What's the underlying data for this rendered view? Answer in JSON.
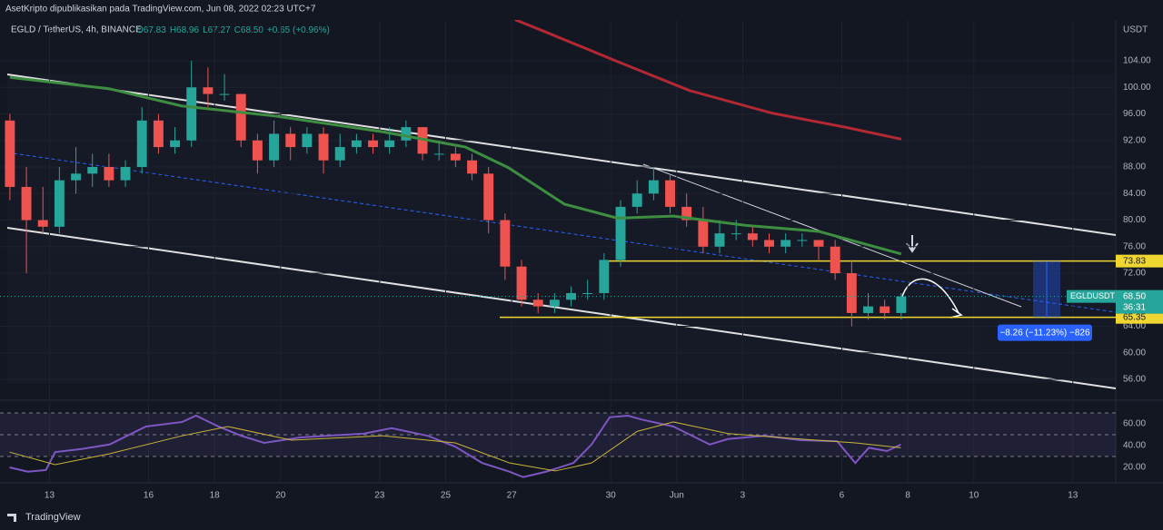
{
  "header": {
    "publisher": "AsetKripto dipublikasikan pada TradingView.com, Jun 08, 2022 02:23 UTC+7",
    "symbol": "EGLD / TetherUS, 4h, BINANCE",
    "ohlc": [
      "O67.83",
      "H68.96",
      "L67.27",
      "C68.50",
      "+0.65 (+0.96%)"
    ],
    "footer": "TradingView"
  },
  "chart_data": [
    {
      "type": "candlestick",
      "axis_title": "USDT",
      "up_color": "#26a69a",
      "down_color": "#ef5350",
      "x": [
        -1.2,
        -0.7,
        -0.2,
        0.3,
        0.8,
        1.3,
        1.8,
        2.3,
        2.8,
        3.3,
        3.8,
        4.3,
        4.8,
        5.3,
        5.8,
        6.3,
        6.8,
        7.3,
        7.8,
        8.3,
        8.8,
        9.3,
        9.8,
        10.3,
        10.8,
        11.3,
        11.8,
        12.3,
        12.8,
        13.3,
        13.8,
        14.3,
        14.8,
        15.3,
        15.8,
        16.3,
        16.8,
        17.3,
        17.8,
        18.3,
        18.8,
        19.3,
        19.8,
        20.3,
        20.8,
        21.3,
        21.8,
        22.3,
        22.8,
        23.3,
        23.8,
        24.3,
        24.8,
        25.3,
        25.8
      ],
      "open": [
        95,
        85,
        80,
        79,
        86,
        87,
        88,
        86,
        88,
        95,
        91,
        92,
        100,
        99,
        99,
        92,
        89,
        93,
        91,
        93,
        89,
        91,
        92,
        91,
        92,
        94,
        90,
        90,
        89,
        87,
        80,
        73,
        68,
        67,
        68,
        69,
        69,
        74,
        82,
        84,
        86,
        82,
        80,
        76,
        78,
        78,
        77,
        76,
        77,
        77,
        76,
        72,
        66,
        67,
        66
      ],
      "high": [
        96,
        88,
        85,
        88,
        91,
        90,
        90,
        89,
        97,
        96,
        94,
        104,
        103,
        102,
        99,
        93,
        95,
        94,
        94,
        94,
        93,
        93,
        93,
        94,
        95,
        94,
        92,
        91,
        90,
        88,
        81,
        74,
        69,
        69,
        70,
        71,
        75,
        83,
        86,
        88,
        87,
        84,
        82,
        80,
        80,
        79,
        78,
        78,
        78,
        77,
        77,
        74,
        69,
        68,
        69
      ],
      "low": [
        83,
        72,
        78,
        78,
        84,
        85,
        85,
        85,
        87,
        90,
        90,
        91,
        97,
        98,
        91,
        87,
        88,
        89,
        90,
        87,
        88,
        90,
        90,
        90,
        91,
        89,
        89,
        88,
        86,
        78,
        71,
        67,
        66,
        66,
        67,
        68,
        68,
        73,
        81,
        83,
        81,
        79,
        75,
        75,
        77,
        76,
        75,
        75,
        76,
        74,
        71,
        64,
        65,
        65,
        65
      ],
      "close": [
        85,
        80,
        79,
        86,
        87,
        88,
        86,
        88,
        95,
        91,
        92,
        100,
        99,
        99,
        92,
        89,
        93,
        91,
        93,
        89,
        91,
        92,
        91,
        92,
        94,
        90,
        90,
        89,
        87,
        80,
        73,
        68,
        67,
        68,
        69,
        69,
        74,
        82,
        84,
        86,
        82,
        80,
        76,
        78,
        78,
        77,
        76,
        77,
        77,
        76,
        72,
        66,
        67,
        66,
        68.5
      ],
      "series": [
        {
          "color": "#3e8e41",
          "x": [
            -1.2,
            1.8,
            4.0,
            6.8,
            10.1,
            12.6,
            13.9,
            15.6,
            17.2,
            18.9,
            21.1,
            23.3,
            25.8
          ],
          "values": [
            101.5,
            99.8,
            97.2,
            95.7,
            93.3,
            91,
            87.9,
            82.4,
            80.3,
            80.6,
            79.2,
            78.3,
            74.9
          ]
        },
        {
          "color": "#b22833",
          "x": [
            14.1,
            15.0,
            17.2,
            19.4,
            21.9,
            24.1,
            25.8
          ],
          "values": [
            110.2,
            108.4,
            103.9,
            99.5,
            96.1,
            94,
            92.2
          ]
        }
      ],
      "price_levels": [
        {
          "value": 73.83,
          "label": "73.83"
        },
        {
          "value": 65.35,
          "label": "65.35"
        }
      ],
      "last_price": {
        "value": 68.5,
        "label": "68.50",
        "symbol": "EGLDUSDT",
        "countdown": "36:31"
      },
      "measure_label": "−8.26 (−11.23%) −826",
      "xlim": [
        -1.5,
        32.3
      ],
      "ylim": [
        53,
        110.15
      ],
      "xticks": [
        {
          "value": 0,
          "label": "13"
        },
        {
          "value": 3,
          "label": "16"
        },
        {
          "value": 5,
          "label": "18"
        },
        {
          "value": 7,
          "label": "20"
        },
        {
          "value": 10,
          "label": "23"
        },
        {
          "value": 12,
          "label": "25"
        },
        {
          "value": 14,
          "label": "27"
        },
        {
          "value": 17,
          "label": "30"
        },
        {
          "value": 19,
          "label": "Jun"
        },
        {
          "value": 21,
          "label": "3"
        },
        {
          "value": 24,
          "label": "6"
        },
        {
          "value": 26,
          "label": "8"
        },
        {
          "value": 28,
          "label": "10"
        },
        {
          "value": 31,
          "label": "13"
        }
      ],
      "yticks": [
        {
          "value": 104,
          "label": "104.00"
        },
        {
          "value": 100,
          "label": "100.00"
        },
        {
          "value": 96,
          "label": "96.00"
        },
        {
          "value": 92,
          "label": "92.00"
        },
        {
          "value": 88,
          "label": "88.00"
        },
        {
          "value": 84,
          "label": "84.00"
        },
        {
          "value": 80,
          "label": "80.00"
        },
        {
          "value": 76,
          "label": "76.00"
        },
        {
          "value": 72,
          "label": "72.00"
        },
        {
          "value": 64,
          "label": "64.00"
        },
        {
          "value": 60,
          "label": "60.00"
        },
        {
          "value": 56,
          "label": "56.00"
        }
      ]
    },
    {
      "type": "line",
      "ylim": [
        5.8,
        80
      ],
      "levels": [
        70,
        50,
        30
      ],
      "yticks": [
        {
          "value": 60,
          "label": "60.00"
        },
        {
          "value": 40,
          "label": "40.00"
        },
        {
          "value": 20,
          "label": "20.00"
        }
      ],
      "series": [
        {
          "color": "#7e57c2",
          "x": [
            -1.21,
            -0.66,
            -0.11,
            0.17,
            0.99,
            1.82,
            2.92,
            4.02,
            4.44,
            5.12,
            5.81,
            6.5,
            7.6,
            8.43,
            9.53,
            10.36,
            11.46,
            12.29,
            13.11,
            13.94,
            14.35,
            15.04,
            15.87,
            16.42,
            16.97,
            17.52,
            17.93,
            18.9,
            20,
            20.55,
            21.65,
            22.75,
            23.86,
            24.41,
            24.82,
            25.37,
            25.79
          ],
          "values": [
            20,
            16,
            17.5,
            34,
            37,
            41,
            57.5,
            61.7,
            67.5,
            57.5,
            49,
            42.5,
            47.5,
            49,
            51,
            56,
            49,
            39,
            24,
            16,
            11,
            16,
            24,
            41,
            66,
            67.5,
            64,
            57.5,
            41,
            46,
            49,
            45,
            44,
            24,
            38,
            35,
            41
          ]
        },
        {
          "color": "#c9b53a",
          "x": [
            -1.21,
            0.17,
            1.82,
            4.02,
            5.4,
            7.33,
            10.08,
            12.29,
            13.94,
            15.32,
            16.42,
            17.8,
            18.9,
            20.55,
            22.75,
            24.41,
            25.79
          ],
          "values": [
            34,
            22.5,
            32.5,
            49,
            57.5,
            45,
            49,
            42.5,
            24,
            16.7,
            24,
            53,
            61.7,
            51,
            46,
            42.5,
            38
          ]
        }
      ]
    }
  ]
}
